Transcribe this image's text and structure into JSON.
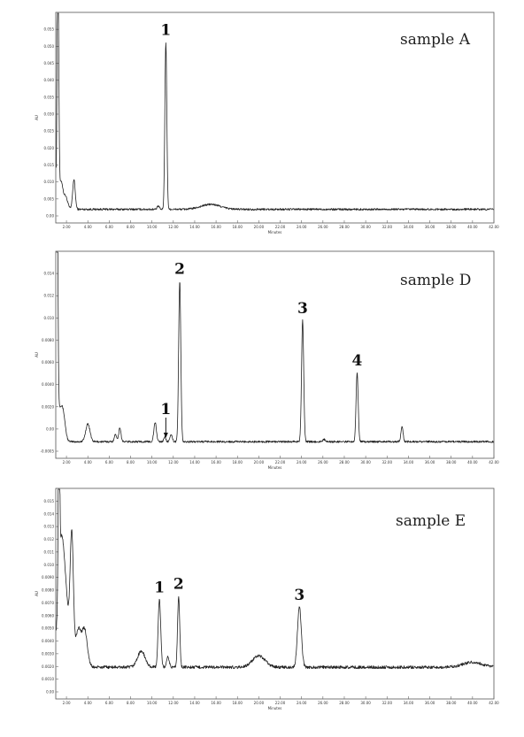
{
  "chart_data": [
    {
      "type": "line",
      "title": "sample A",
      "xlabel": "Minutes",
      "ylabel": "AU",
      "xlim": [
        1.0,
        42.0
      ],
      "ylim": [
        -0.002,
        0.06
      ],
      "xticks": [
        "2.00",
        "4.00",
        "6.00",
        "8.00",
        "10.00",
        "12.00",
        "14.00",
        "16.00",
        "18.00",
        "20.00",
        "22.00",
        "24.00",
        "26.00",
        "28.00",
        "30.00",
        "32.00",
        "34.00",
        "36.00",
        "38.00",
        "40.00",
        "42.00"
      ],
      "yticks": [
        "0.00",
        "0.005",
        "0.010",
        "0.015",
        "0.020",
        "0.025",
        "0.030",
        "0.035",
        "0.040",
        "0.045",
        "0.050",
        "0.055"
      ],
      "baseline": 0.0,
      "noise": 0.0003,
      "peaks": [
        {
          "x": 1.2,
          "h": 0.075,
          "w": 0.08
        },
        {
          "x": 1.5,
          "h": 0.008,
          "w": 0.15
        },
        {
          "x": 1.9,
          "h": 0.004,
          "w": 0.2
        },
        {
          "x": 2.7,
          "h": 0.009,
          "w": 0.12
        },
        {
          "x": 10.6,
          "h": 0.001,
          "w": 0.1
        },
        {
          "x": 11.3,
          "h": 0.051,
          "w": 0.09
        },
        {
          "x": 15.5,
          "h": 0.0015,
          "w": 0.9
        }
      ],
      "peak_labels": [
        {
          "label": "1",
          "x": 11.3
        }
      ]
    },
    {
      "type": "line",
      "title": "sample D",
      "xlabel": "Minutes",
      "ylabel": "AU",
      "xlim": [
        1.0,
        42.0
      ],
      "ylim": [
        -0.0008,
        0.016
      ],
      "xticks": [
        "2.00",
        "4.00",
        "6.00",
        "8.00",
        "10.00",
        "12.00",
        "14.00",
        "16.00",
        "18.00",
        "20.00",
        "22.00",
        "24.00",
        "26.00",
        "28.00",
        "30.00",
        "32.00",
        "34.00",
        "36.00",
        "38.00",
        "40.00",
        "42.00"
      ],
      "yticks": [
        "-0.0005",
        "0.00",
        "0.0020",
        "0.0040",
        "0.0060",
        "0.0080",
        "0.010",
        "0.012",
        "0.014"
      ],
      "baseline": 0.0,
      "noise": 8e-05,
      "peaks": [
        {
          "x": 1.1,
          "h": 0.03,
          "w": 0.08
        },
        {
          "x": 1.3,
          "h": 0.0025,
          "w": 0.25
        },
        {
          "x": 1.7,
          "h": 0.002,
          "w": 0.2
        },
        {
          "x": 4.0,
          "h": 0.0015,
          "w": 0.2
        },
        {
          "x": 6.6,
          "h": 0.0006,
          "w": 0.12
        },
        {
          "x": 7.0,
          "h": 0.0012,
          "w": 0.1
        },
        {
          "x": 10.3,
          "h": 0.0016,
          "w": 0.12
        },
        {
          "x": 11.2,
          "h": 0.0004,
          "w": 0.1
        },
        {
          "x": 11.8,
          "h": 0.0006,
          "w": 0.1
        },
        {
          "x": 12.6,
          "h": 0.0135,
          "w": 0.1
        },
        {
          "x": 24.1,
          "h": 0.0102,
          "w": 0.1
        },
        {
          "x": 26.1,
          "h": 0.0002,
          "w": 0.1
        },
        {
          "x": 29.2,
          "h": 0.0058,
          "w": 0.1
        },
        {
          "x": 33.4,
          "h": 0.0013,
          "w": 0.1
        }
      ],
      "peak_labels": [
        {
          "label": "2",
          "x": 12.6
        },
        {
          "label": "3",
          "x": 24.1
        },
        {
          "label": "4",
          "x": 29.2
        },
        {
          "label": "1",
          "x": 11.3
        }
      ]
    },
    {
      "type": "line",
      "title": "sample E",
      "xlabel": "Minutes",
      "ylabel": "AU",
      "xlim": [
        1.0,
        42.0
      ],
      "ylim": [
        -0.0005,
        0.016
      ],
      "xticks": [
        "2.00",
        "4.00",
        "6.00",
        "8.00",
        "10.00",
        "12.00",
        "14.00",
        "16.00",
        "18.00",
        "20.00",
        "22.00",
        "24.00",
        "26.00",
        "28.00",
        "30.00",
        "32.00",
        "34.00",
        "36.00",
        "38.00",
        "40.00",
        "42.00"
      ],
      "yticks": [
        "0.00",
        "0.0010",
        "0.0020",
        "0.0030",
        "0.0040",
        "0.0050",
        "0.0060",
        "0.0070",
        "0.0080",
        "0.0090",
        "0.010",
        "0.011",
        "0.012",
        "0.013",
        "0.014",
        "0.015"
      ],
      "baseline": 0.0015,
      "noise": 0.00012,
      "peaks": [
        {
          "x": 1.3,
          "h": 0.018,
          "w": 0.06
        },
        {
          "x": 1.5,
          "h": 0.0095,
          "w": 0.3
        },
        {
          "x": 2.0,
          "h": 0.004,
          "w": 0.3
        },
        {
          "x": 2.5,
          "h": 0.01,
          "w": 0.15
        },
        {
          "x": 3.1,
          "h": 0.003,
          "w": 0.25
        },
        {
          "x": 3.7,
          "h": 0.003,
          "w": 0.25
        },
        {
          "x": 9.0,
          "h": 0.0013,
          "w": 0.35
        },
        {
          "x": 10.7,
          "h": 0.0055,
          "w": 0.12
        },
        {
          "x": 11.5,
          "h": 0.0008,
          "w": 0.12
        },
        {
          "x": 12.5,
          "h": 0.0058,
          "w": 0.1
        },
        {
          "x": 20.0,
          "h": 0.0009,
          "w": 0.6
        },
        {
          "x": 23.8,
          "h": 0.0049,
          "w": 0.18
        },
        {
          "x": 40.0,
          "h": 0.0004,
          "w": 0.9
        }
      ],
      "peak_labels": [
        {
          "label": "1",
          "x": 10.7
        },
        {
          "label": "2",
          "x": 12.5
        },
        {
          "label": "3",
          "x": 23.8
        }
      ]
    }
  ]
}
